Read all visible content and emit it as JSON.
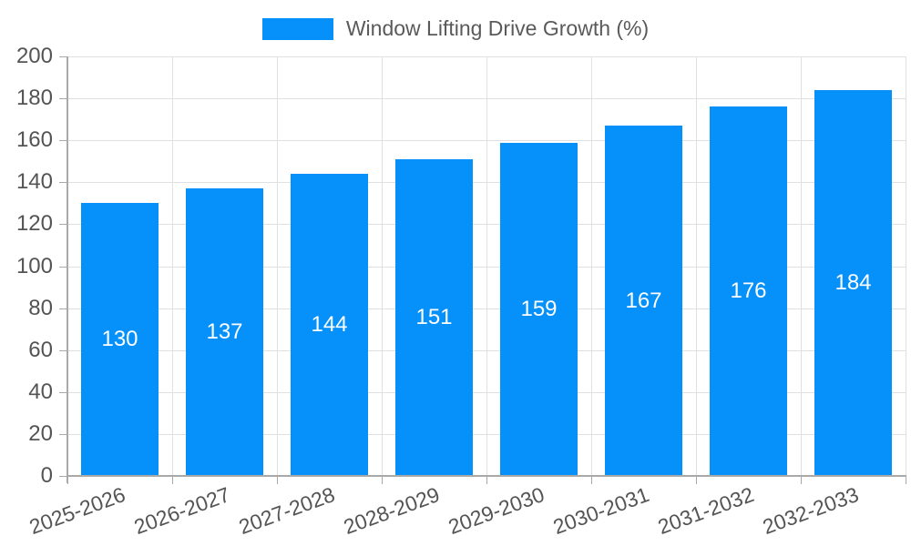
{
  "colors": {
    "bar": "#0690fa",
    "grid": "#e0e0e0",
    "axis": "#a9a9a9",
    "axis_label": "#545454",
    "legend_text": "#5a5a5a",
    "value_label": "#ffffff",
    "background": "#ffffff"
  },
  "legend": {
    "items": [
      {
        "label": "Window Lifting Drive Growth (%)",
        "color": "#0690fa",
        "swatch": "blue-rect"
      }
    ]
  },
  "chart_data": {
    "type": "bar",
    "title": "Window Lifting Drive Growth (%)",
    "categories": [
      "2025-2026",
      "2026-2027",
      "2027-2028",
      "2028-2029",
      "2029-2030",
      "2030-2031",
      "2031-2032",
      "2032-2033"
    ],
    "values": [
      130,
      137,
      144,
      151,
      159,
      167,
      176,
      184
    ],
    "series": [
      {
        "name": "Window Lifting Drive Growth (%)",
        "values": [
          130,
          137,
          144,
          151,
          159,
          167,
          176,
          184
        ]
      }
    ],
    "xlabel": "",
    "ylabel": "",
    "ylim": [
      0,
      200
    ],
    "yticks": [
      0,
      20,
      40,
      60,
      80,
      100,
      120,
      140,
      160,
      180,
      200
    ],
    "grid": true,
    "legend_position": "top-center",
    "x_label_rotation_deg": -20,
    "value_label_position": "center-inside-bar",
    "bar_color": "#0690fa"
  }
}
